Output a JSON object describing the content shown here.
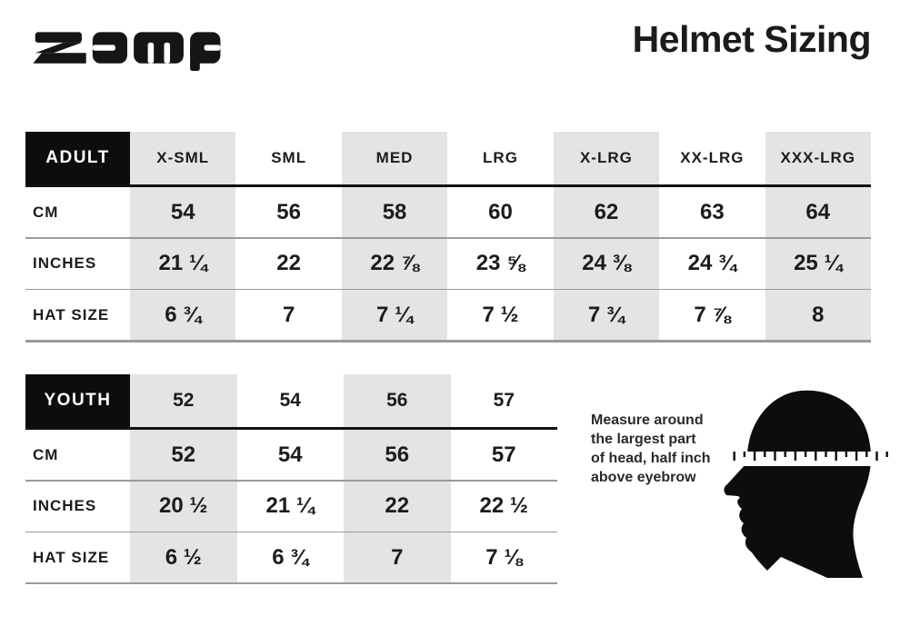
{
  "brand": {
    "logo_text": "zamp"
  },
  "title": "Helmet Sizing",
  "adult_table": {
    "header": [
      "ADULT",
      "X-SML",
      "SML",
      "MED",
      "LRG",
      "X-LRG",
      "XX-LRG",
      "XXX-LRG"
    ],
    "rows": [
      {
        "label": "CM",
        "values": [
          "54",
          "56",
          "58",
          "60",
          "62",
          "63",
          "64"
        ]
      },
      {
        "label": "INCHES",
        "values": [
          "21 ¼",
          "22",
          "22 ⅞",
          "23 ⅝",
          "24 ⅜",
          "24 ¾",
          "25 ¼"
        ]
      },
      {
        "label": "HAT SIZE",
        "values": [
          "6 ¾",
          "7",
          "7 ¼",
          "7 ½",
          "7 ¾",
          "7 ⅞",
          "8"
        ]
      }
    ]
  },
  "youth_table": {
    "header": [
      "YOUTH",
      "52",
      "54",
      "56",
      "57"
    ],
    "rows": [
      {
        "label": "CM",
        "values": [
          "52",
          "54",
          "56",
          "57"
        ]
      },
      {
        "label": "INCHES",
        "values": [
          "20 ½",
          "21 ¼",
          "22",
          "22 ½"
        ]
      },
      {
        "label": "HAT SIZE",
        "values": [
          "6 ½",
          "6 ¾",
          "7",
          "7 ⅛"
        ]
      }
    ]
  },
  "measure_note": "Measure around\nthe largest part\nof head, half inch\nabove eyebrow",
  "icons": {
    "logo": "zamp-wordmark",
    "figure": "head-profile-silhouette-with-measuring-tape"
  },
  "colors": {
    "stripe_gray": "#e4e4e6",
    "ink_black": "#151515",
    "rule_gray": "#9a9a9a",
    "corner_black": "#0d0d0d"
  }
}
